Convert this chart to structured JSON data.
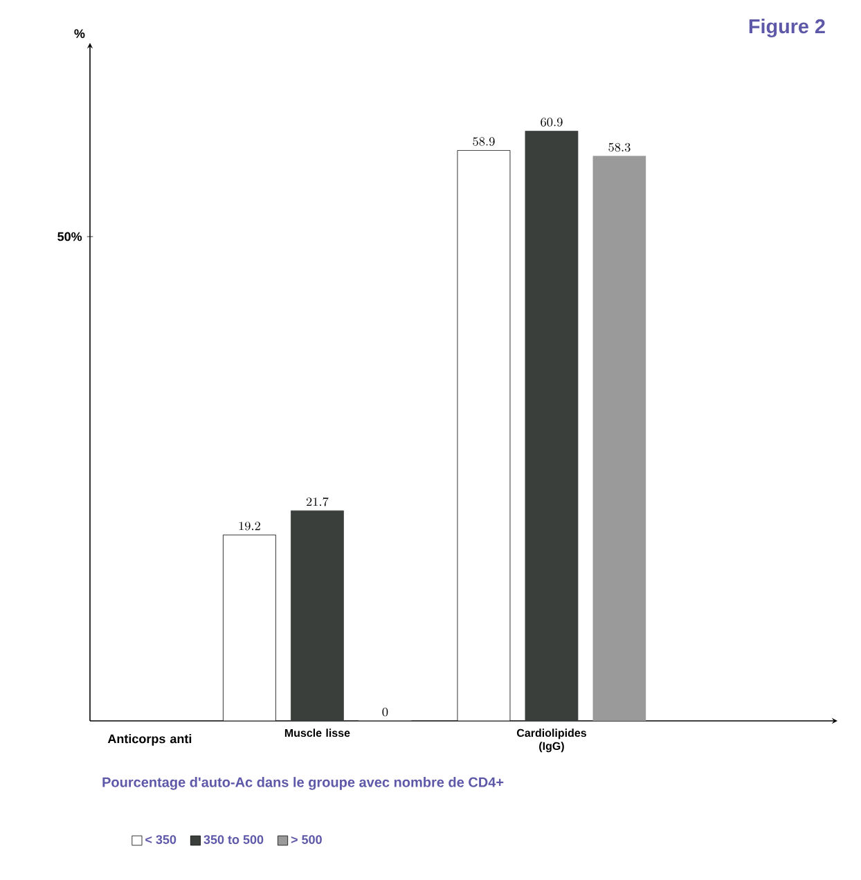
{
  "chart_data": {
    "type": "bar",
    "title": "Figure 2",
    "ylabel": "%",
    "xlabel": "Anticorps anti",
    "categories": [
      "Muscle lisse",
      "Cardiolipides (IgG)"
    ],
    "series": [
      {
        "name": "< 350",
        "color": "#ffffff",
        "values": [
          19.2,
          58.9
        ]
      },
      {
        "name": "350 to 500",
        "color": "#3a3f3c",
        "values": [
          21.7,
          60.9
        ]
      },
      {
        "name": "> 500",
        "color": "#9a9a9a",
        "values": [
          0,
          58.3
        ]
      }
    ],
    "ylim": [
      0,
      70
    ],
    "yticks": [
      {
        "value": 50,
        "label": "50%"
      }
    ],
    "data_labels": true,
    "legend": "bottom",
    "grid": false,
    "annotations": [
      "Pourcentage d'auto-Ac dans le groupe avec nombre de CD4+"
    ]
  }
}
